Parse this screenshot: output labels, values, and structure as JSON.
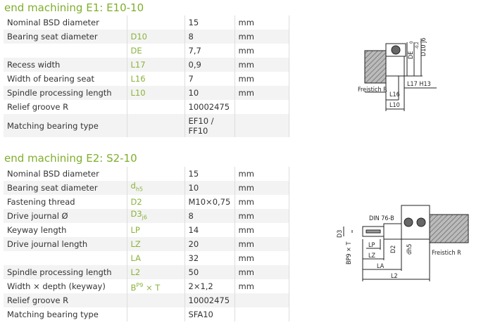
{
  "sections": [
    {
      "title": "end machining E1: E10-10",
      "rows": [
        {
          "label": "Nominal BSD diameter",
          "value": "15",
          "unit": "mm"
        },
        {
          "label": "Bearing seat diameter",
          "symbol": "D10",
          "value": "8",
          "unit": "mm"
        },
        {
          "symbol": "DE",
          "value": "7,7",
          "unit": "mm"
        },
        {
          "label": "Recess width",
          "symbol": "L17",
          "value": "0,9",
          "unit": "mm"
        },
        {
          "label": "Width of bearing seat",
          "symbol": "L16",
          "value": "7",
          "unit": "mm"
        },
        {
          "label": "Spindle processing length",
          "symbol": "L10",
          "value": "10",
          "unit": "mm"
        },
        {
          "label": "Relief groove R",
          "value": "10002475"
        },
        {
          "label": "Matching bearing type",
          "value_lines": [
            "EF10 /",
            "FF10"
          ]
        }
      ],
      "drawing": {
        "labels": [
          "DE",
          "-0,2",
          "0",
          "D10 j6",
          "Freistich R",
          "L16",
          "L17 H13",
          "L10"
        ]
      }
    },
    {
      "title": "end machining E2: S2-10",
      "rows": [
        {
          "label": "Nominal BSD diameter",
          "value": "15",
          "unit": "mm"
        },
        {
          "label": "Bearing seat diameter",
          "symbol": "d",
          "symbol_sub": "h5",
          "value": "10",
          "unit": "mm"
        },
        {
          "label": "Fastening thread",
          "symbol": "D2",
          "value": "M10×0,75",
          "unit": "mm"
        },
        {
          "label": "Drive journal Ø",
          "symbol": "D3",
          "symbol_sub": "j6",
          "value": "8",
          "unit": "mm"
        },
        {
          "label": "Keyway length",
          "symbol": "LP",
          "value": "14",
          "unit": "mm"
        },
        {
          "label": "Drive journal length",
          "symbol": "LZ",
          "value": "20",
          "unit": "mm"
        },
        {
          "symbol": "LA",
          "value": "32",
          "unit": "mm"
        },
        {
          "label": "Spindle processing length",
          "symbol": "L2",
          "value": "50",
          "unit": "mm"
        },
        {
          "label": "Width × depth (keyway)",
          "symbol": "B",
          "symbol_sup": "P9",
          "symbol_after": " × T",
          "value": "2×1,2",
          "unit": "mm"
        },
        {
          "label": "Relief groove R",
          "value": "10002475"
        },
        {
          "label": "Matching bearing type",
          "value": "SFA10"
        }
      ],
      "drawing": {
        "labels": [
          "DIN 76-B",
          "D3",
          "BP9 × T",
          "D2",
          "dh5",
          "LP",
          "LZ",
          "LA",
          "L2",
          "Freistich R"
        ]
      }
    }
  ]
}
